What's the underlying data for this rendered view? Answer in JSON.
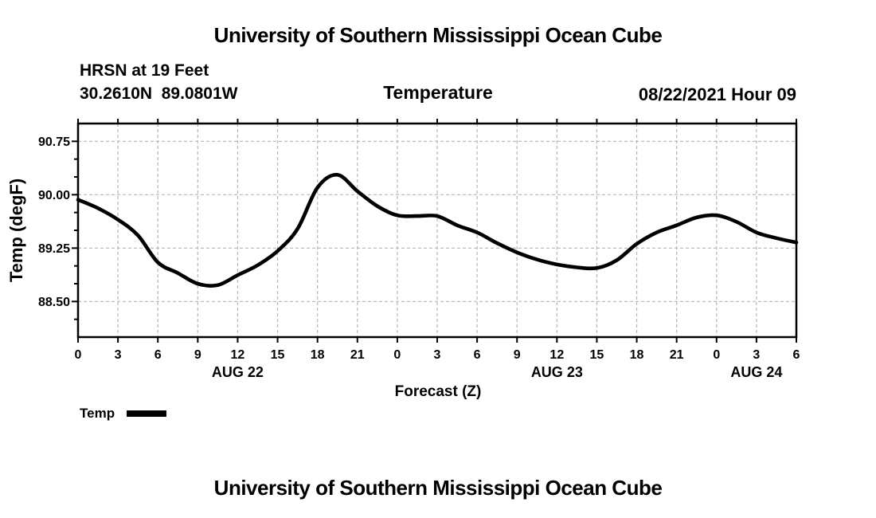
{
  "header": {
    "title": "University of Southern Mississippi Ocean Cube",
    "station": "HRSN at 19 Feet",
    "coordinates": "30.2610N  89.0801W",
    "run_date": "08/22/2021 Hour 09"
  },
  "footer": {
    "title": "University of Southern Mississippi Ocean Cube"
  },
  "chart_data": {
    "type": "line",
    "title": "Temperature",
    "xlabel": "Forecast (Z)",
    "ylabel": "Temp (degF)",
    "x_axis": {
      "start_hour": 0,
      "end_hour": 54,
      "tick_step_hours": 3,
      "tick_labels": [
        "0",
        "3",
        "6",
        "9",
        "12",
        "15",
        "18",
        "21",
        "0",
        "3",
        "6",
        "9",
        "12",
        "15",
        "18",
        "21",
        "0",
        "3",
        "6"
      ],
      "date_labels": [
        {
          "text": "AUG 22",
          "hour": 12
        },
        {
          "text": "AUG 23",
          "hour": 36
        },
        {
          "text": "AUG 24",
          "hour": 51
        }
      ]
    },
    "ylim": [
      88.0,
      91.0
    ],
    "y_major_ticks": [
      88.5,
      89.25,
      90.0,
      90.75
    ],
    "y_major_tick_labels": [
      "88.50",
      "89.25",
      "90.00",
      "90.75"
    ],
    "y_minor_step": 0.25,
    "grid": true,
    "legend": {
      "label": "Temp",
      "position": "bottom-left"
    },
    "colors": {
      "line": "#000000",
      "grid": "#b6b6b6",
      "text": "#000000",
      "background": "#ffffff"
    },
    "series": [
      {
        "name": "Temp",
        "x_step_hours": 1.5,
        "values": [
          89.93,
          89.81,
          89.65,
          89.43,
          89.05,
          88.9,
          88.75,
          88.73,
          88.87,
          89.01,
          89.21,
          89.52,
          90.1,
          90.28,
          90.05,
          89.84,
          89.71,
          89.7,
          89.7,
          89.57,
          89.47,
          89.32,
          89.19,
          89.09,
          89.02,
          88.98,
          88.97,
          89.08,
          89.31,
          89.47,
          89.57,
          89.68,
          89.71,
          89.62,
          89.47,
          89.39,
          89.33
        ]
      }
    ]
  }
}
